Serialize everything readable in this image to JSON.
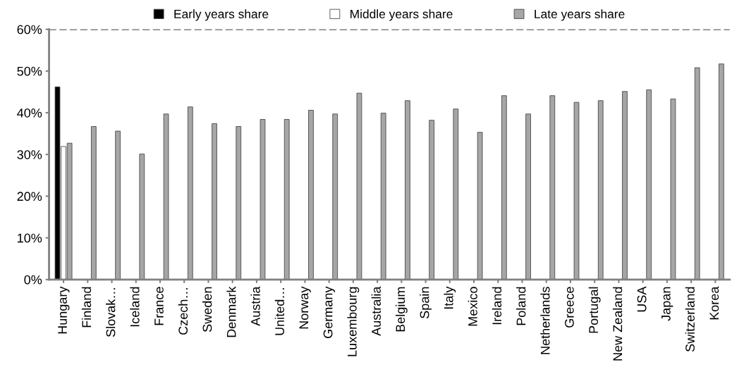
{
  "chart_data": {
    "type": "bar",
    "categories": [
      "Hungary",
      "Finland",
      "Slovak…",
      "Iceland",
      "France",
      "Czech…",
      "Sweden",
      "Denmark",
      "Austria",
      "United…",
      "Norway",
      "Germany",
      "Luxembourg",
      "Australia",
      "Belgium",
      "Spain",
      "Italy",
      "Mexico",
      "Ireland",
      "Poland",
      "Netherlands",
      "Greece",
      "Portugal",
      "New Zealand",
      "USA",
      "Japan",
      "Switzerland",
      "Korea"
    ],
    "series": [
      {
        "name": "Early years share",
        "color": "#000000",
        "values": [
          46.2,
          null,
          null,
          null,
          null,
          null,
          null,
          null,
          null,
          null,
          null,
          null,
          null,
          null,
          null,
          null,
          null,
          null,
          null,
          null,
          null,
          null,
          null,
          null,
          null,
          null,
          null,
          null
        ]
      },
      {
        "name": "Middle years share",
        "color": "#ffffff",
        "values": [
          31.9,
          null,
          null,
          null,
          null,
          null,
          null,
          null,
          null,
          null,
          null,
          null,
          null,
          null,
          null,
          null,
          null,
          null,
          null,
          null,
          null,
          null,
          null,
          null,
          null,
          null,
          null,
          null
        ]
      },
      {
        "name": "Late years share",
        "color": "#a6a6a6",
        "values": [
          32.7,
          36.7,
          35.6,
          30.1,
          39.7,
          41.4,
          37.4,
          36.7,
          38.4,
          38.4,
          40.6,
          39.7,
          44.7,
          39.9,
          42.9,
          38.2,
          40.9,
          35.3,
          44.1,
          39.7,
          44.1,
          42.5,
          42.9,
          45.1,
          45.5,
          43.3,
          50.8,
          51.7
        ]
      }
    ],
    "ylim": [
      0,
      60
    ],
    "yticks": [
      {
        "value": 0,
        "label": "0%"
      },
      {
        "value": 10,
        "label": "10%"
      },
      {
        "value": 20,
        "label": "20%"
      },
      {
        "value": 30,
        "label": "30%"
      },
      {
        "value": 40,
        "label": "40%"
      },
      {
        "value": 50,
        "label": "50%"
      },
      {
        "value": 60,
        "label": "60%"
      }
    ],
    "ref_lines": [
      {
        "axis": "y",
        "value": 60,
        "color": "#808080",
        "line_style": "dashed"
      }
    ],
    "legend": "top",
    "grid": false
  }
}
